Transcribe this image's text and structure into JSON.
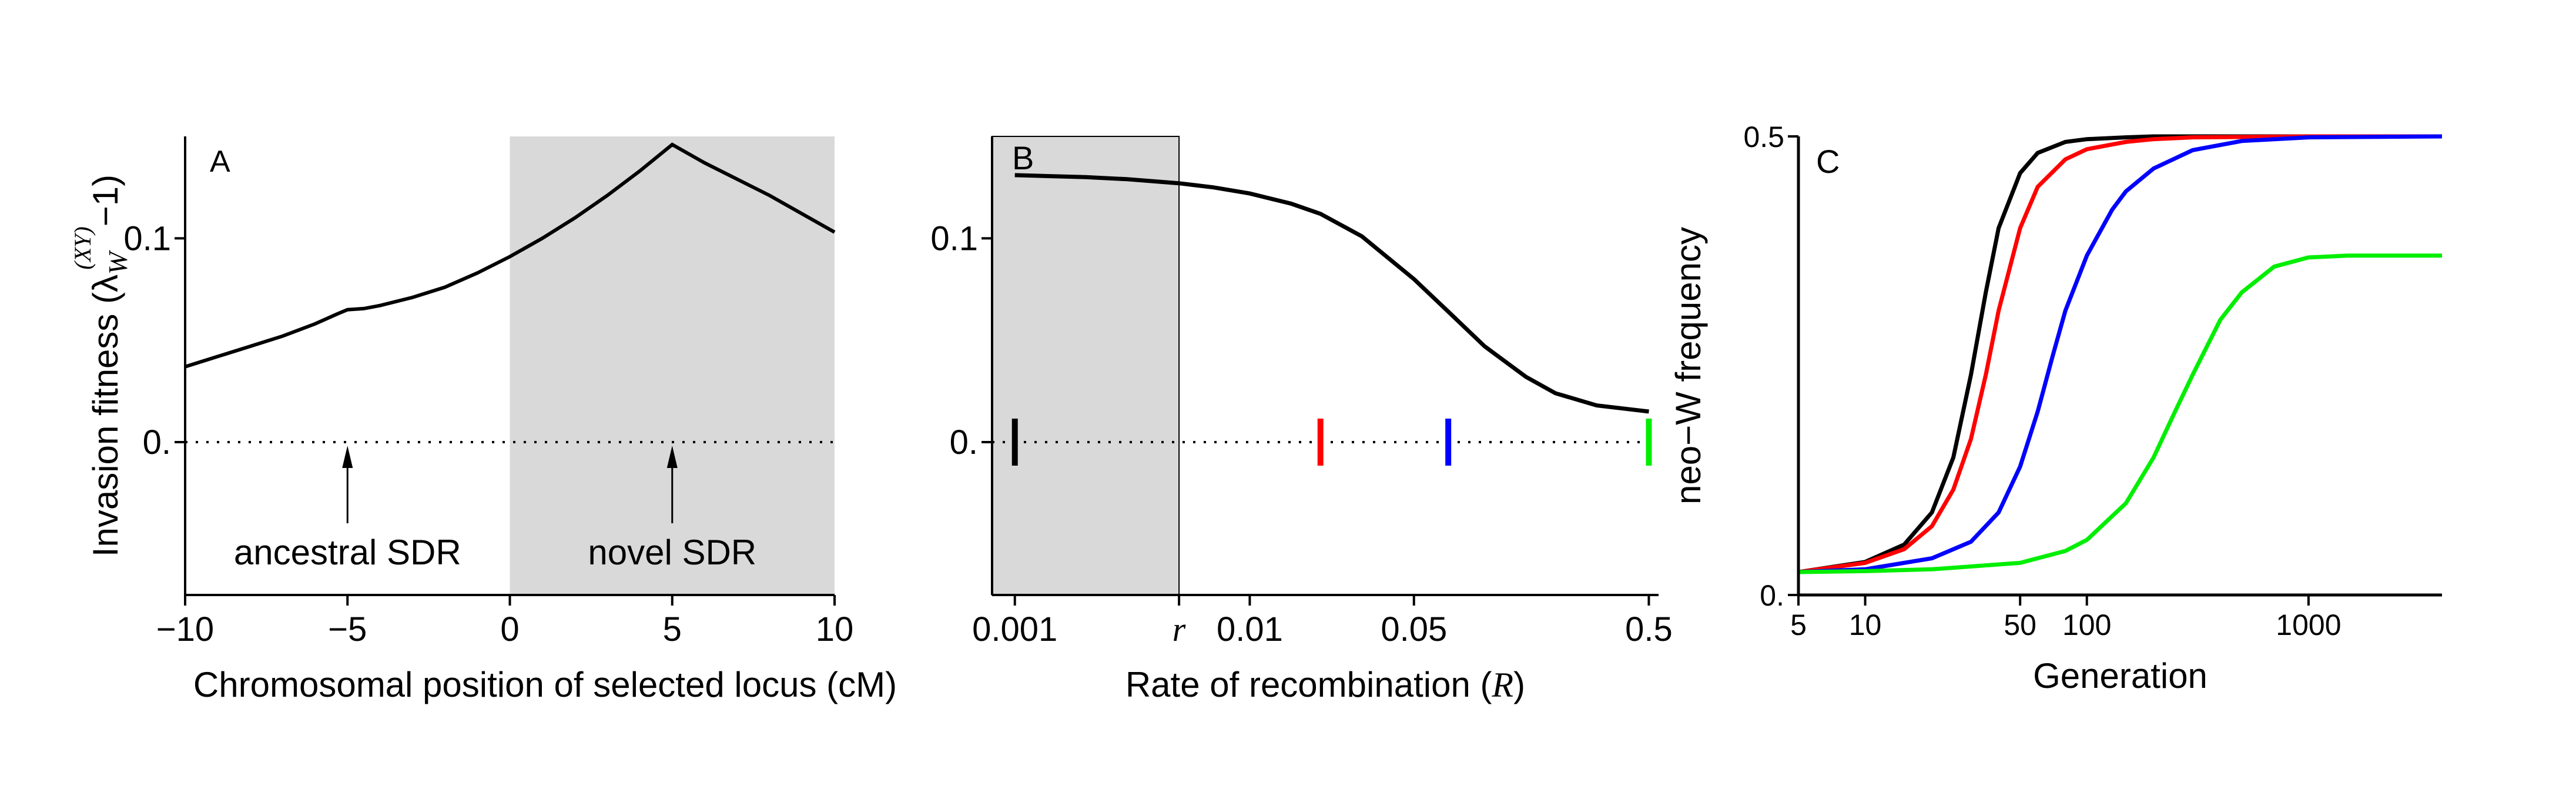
{
  "chart_data": [
    {
      "type": "line",
      "panel_label": "A",
      "ylabel": "Invasion fitness (λ",
      "ylabel_sub": "W",
      "ylabel_sup": "(XY)",
      "ylabel_tail": "−1)",
      "xlabel": "Chromosomal position of selected locus (cM)",
      "xlim": [
        -10,
        10
      ],
      "ylim": [
        -0.075,
        0.15
      ],
      "xticks": [
        -10,
        -5,
        0,
        5,
        10
      ],
      "xtick_labels": [
        "−10",
        "−5",
        "0",
        "5",
        "10"
      ],
      "yticks": [
        0,
        0.1
      ],
      "ytick_labels": [
        "0.",
        "0.1"
      ],
      "shaded_region": [
        0,
        10
      ],
      "zero_line": true,
      "series": [
        {
          "x": [
            -10,
            -9,
            -8,
            -7,
            -6,
            -5.3,
            -5,
            -4.5,
            -4,
            -3,
            -2,
            -1,
            0,
            1,
            2,
            3,
            4,
            5,
            6,
            7,
            8,
            9,
            10
          ],
          "y": [
            0.037,
            0.042,
            0.047,
            0.052,
            0.058,
            0.063,
            0.065,
            0.0655,
            0.067,
            0.071,
            0.076,
            0.083,
            0.091,
            0.1,
            0.11,
            0.121,
            0.133,
            0.146,
            0.137,
            0.129,
            0.121,
            0.112,
            0.103
          ]
        }
      ],
      "annotations": [
        {
          "text": "ancestral SDR",
          "x": -5
        },
        {
          "text": "novel SDR",
          "x": 5
        }
      ]
    },
    {
      "type": "line",
      "panel_label": "B",
      "xlabel": "Rate of recombination (",
      "xlabel_var": "R",
      "xlabel_tail": ")",
      "xscale": "log",
      "xlim": [
        0.0008,
        0.55
      ],
      "ylim": [
        -0.075,
        0.15
      ],
      "xticks": [
        0.001,
        0.005,
        0.01,
        0.05,
        0.5
      ],
      "xtick_labels": [
        "0.001",
        "r",
        "0.01",
        "0.05",
        "0.5"
      ],
      "yticks": [
        0,
        0.1
      ],
      "ytick_labels": [
        "0.",
        "0.1"
      ],
      "shaded_region": [
        0.0008,
        0.005
      ],
      "zero_line": true,
      "series": [
        {
          "x": [
            0.001,
            0.002,
            0.003,
            0.005,
            0.007,
            0.01,
            0.015,
            0.02,
            0.03,
            0.05,
            0.07,
            0.1,
            0.15,
            0.2,
            0.3,
            0.5
          ],
          "y": [
            0.131,
            0.13,
            0.129,
            0.127,
            0.125,
            0.122,
            0.117,
            0.112,
            0.101,
            0.08,
            0.064,
            0.047,
            0.032,
            0.024,
            0.018,
            0.015
          ]
        }
      ],
      "markers": [
        {
          "x": 0.001,
          "color": "#000000"
        },
        {
          "x": 0.02,
          "color": "#ff0000"
        },
        {
          "x": 0.07,
          "color": "#0000ff"
        },
        {
          "x": 0.5,
          "color": "#00ee00"
        }
      ]
    },
    {
      "type": "line",
      "panel_label": "C",
      "ylabel": "neo−W frequency",
      "xlabel": "Generation",
      "xscale": "log",
      "xlim": [
        5,
        4000
      ],
      "ylim": [
        0,
        0.5
      ],
      "xticks": [
        5,
        10,
        50,
        100,
        1000
      ],
      "xtick_labels": [
        "5",
        "10",
        "50",
        "100",
        "1000"
      ],
      "yticks": [
        0,
        0.5
      ],
      "ytick_labels": [
        "0.",
        "0.5"
      ],
      "series": [
        {
          "color": "#000000",
          "x": [
            5,
            10,
            15,
            20,
            25,
            30,
            35,
            40,
            50,
            60,
            80,
            100,
            150,
            200,
            300,
            1000,
            4000
          ],
          "y": [
            0.025,
            0.036,
            0.055,
            0.09,
            0.15,
            0.24,
            0.33,
            0.4,
            0.46,
            0.482,
            0.494,
            0.497,
            0.499,
            0.5,
            0.5,
            0.5,
            0.5
          ]
        },
        {
          "color": "#ff0000",
          "x": [
            5,
            10,
            15,
            20,
            25,
            30,
            35,
            40,
            50,
            60,
            80,
            100,
            150,
            200,
            300,
            1000,
            4000
          ],
          "y": [
            0.025,
            0.035,
            0.05,
            0.075,
            0.115,
            0.17,
            0.24,
            0.31,
            0.4,
            0.445,
            0.475,
            0.486,
            0.494,
            0.497,
            0.499,
            0.5,
            0.5
          ]
        },
        {
          "color": "#0000ff",
          "x": [
            5,
            10,
            20,
            30,
            40,
            50,
            60,
            70,
            80,
            100,
            130,
            150,
            200,
            300,
            500,
            1000,
            4000
          ],
          "y": [
            0.025,
            0.028,
            0.04,
            0.058,
            0.09,
            0.14,
            0.2,
            0.26,
            0.31,
            0.37,
            0.42,
            0.44,
            0.465,
            0.485,
            0.495,
            0.499,
            0.5
          ]
        },
        {
          "color": "#00ee00",
          "x": [
            5,
            10,
            20,
            50,
            80,
            100,
            150,
            200,
            250,
            300,
            400,
            500,
            700,
            1000,
            1500,
            4000
          ],
          "y": [
            0.025,
            0.026,
            0.028,
            0.035,
            0.048,
            0.06,
            0.1,
            0.15,
            0.2,
            0.24,
            0.3,
            0.33,
            0.358,
            0.368,
            0.37,
            0.37
          ]
        }
      ]
    }
  ]
}
